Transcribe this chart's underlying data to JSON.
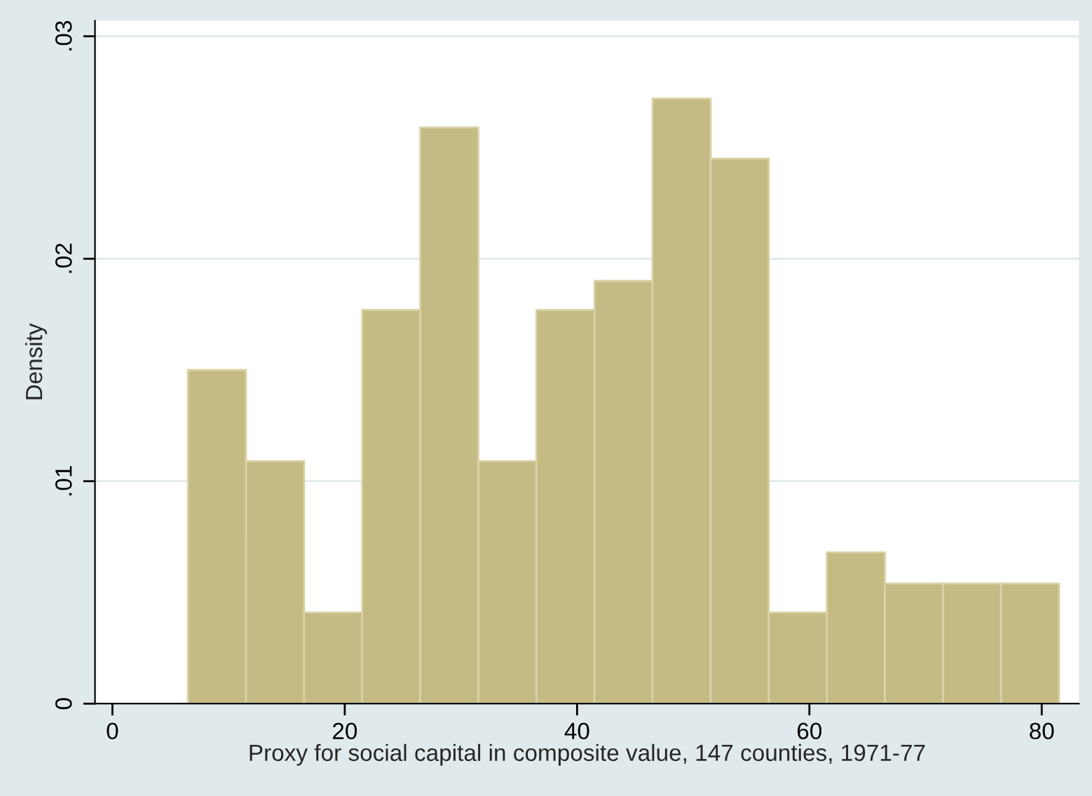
{
  "chart_data": {
    "type": "histogram",
    "xlabel": "Proxy for social capital in composite value, 147 counties, 1971-77",
    "ylabel": "Density",
    "bins": [
      6.5,
      11.5,
      16.5,
      21.5,
      26.5,
      31.5,
      36.5,
      41.5,
      46.5,
      51.5,
      56.5,
      61.5,
      66.5,
      71.5,
      76.5,
      81.5
    ],
    "values": [
      0.015,
      0.0109,
      0.0041,
      0.0177,
      0.0259,
      0.0109,
      0.0177,
      0.019,
      0.0272,
      0.0245,
      0.0041,
      0.0068,
      0.0054,
      0.0054,
      0.0054
    ],
    "color": "#c4bb84",
    "xlim": [
      -1.5,
      83.2
    ],
    "ylim": [
      0,
      0.0307
    ],
    "xticks": [
      0,
      20,
      40,
      60,
      80
    ],
    "yticks": [
      0,
      {
        "value": 0.01,
        "label": ".01"
      },
      {
        "value": 0.02,
        "label": ".02"
      },
      {
        "value": 0.03,
        "label": ".03"
      }
    ],
    "grid": "y"
  }
}
